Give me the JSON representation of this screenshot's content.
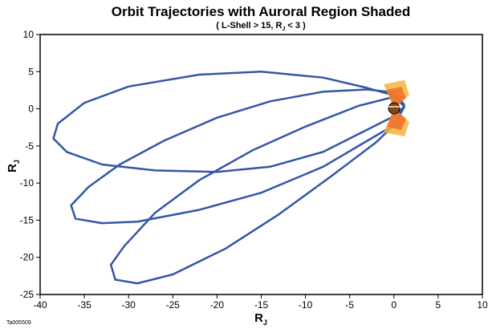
{
  "chart_data": {
    "type": "line",
    "title": "Orbit Trajectories with Auroral Region Shaded",
    "subtitle": [
      "( L-Shell > 15, R",
      "J",
      " < 3 )"
    ],
    "xlabel": {
      "text": "R",
      "sub": "J"
    },
    "ylabel": {
      "text": "R",
      "sub": "J"
    },
    "footnote": "Ta005509",
    "xlim": [
      -40,
      10
    ],
    "xticks": [
      -40,
      -35,
      -30,
      -25,
      -20,
      -15,
      -10,
      -5,
      0,
      5,
      10
    ],
    "ylim": [
      -25,
      10
    ],
    "yticks": [
      -25,
      -20,
      -15,
      -10,
      -5,
      0,
      5,
      10
    ],
    "grid": false,
    "series": [
      {
        "color": "#3456a8",
        "x": [
          1.2,
          0,
          -3,
          -8,
          -15,
          -22,
          -30,
          -35,
          -38,
          -38.5,
          -37,
          -33,
          -27,
          -20,
          -14,
          -8,
          -3,
          0,
          1.2
        ],
        "values": [
          0.3,
          1.8,
          2.8,
          4.2,
          5,
          4.6,
          3,
          0.8,
          -2,
          -4,
          -5.8,
          -7.5,
          -8.3,
          -8.5,
          -7.8,
          -5.8,
          -2.8,
          -1,
          0.3
        ]
      },
      {
        "color": "#3456a8",
        "x": [
          1.2,
          0,
          -3,
          -8,
          -14,
          -20,
          -26,
          -31,
          -34.5,
          -36.5,
          -36,
          -33,
          -29,
          -22,
          -15,
          -8,
          -3,
          0,
          1.2
        ],
        "values": [
          0.5,
          2.2,
          2.6,
          2.3,
          1,
          -1.2,
          -4.3,
          -7.5,
          -10.5,
          -13,
          -14.8,
          -15.4,
          -15.2,
          -13.6,
          -11.3,
          -7.8,
          -4.3,
          -2.2,
          0.5
        ]
      },
      {
        "color": "#3456a8",
        "x": [
          1.2,
          0,
          -4,
          -10,
          -16,
          -22,
          -27,
          -30.5,
          -32,
          -31.5,
          -29,
          -25,
          -19,
          -13,
          -7,
          -2,
          0,
          1.2
        ],
        "values": [
          0.3,
          1.6,
          0.4,
          -2.4,
          -5.6,
          -9.6,
          -14,
          -18.5,
          -21,
          -23,
          -23.5,
          -22.3,
          -18.8,
          -14.2,
          -9,
          -4.5,
          -2.2,
          0.3
        ]
      }
    ]
  }
}
